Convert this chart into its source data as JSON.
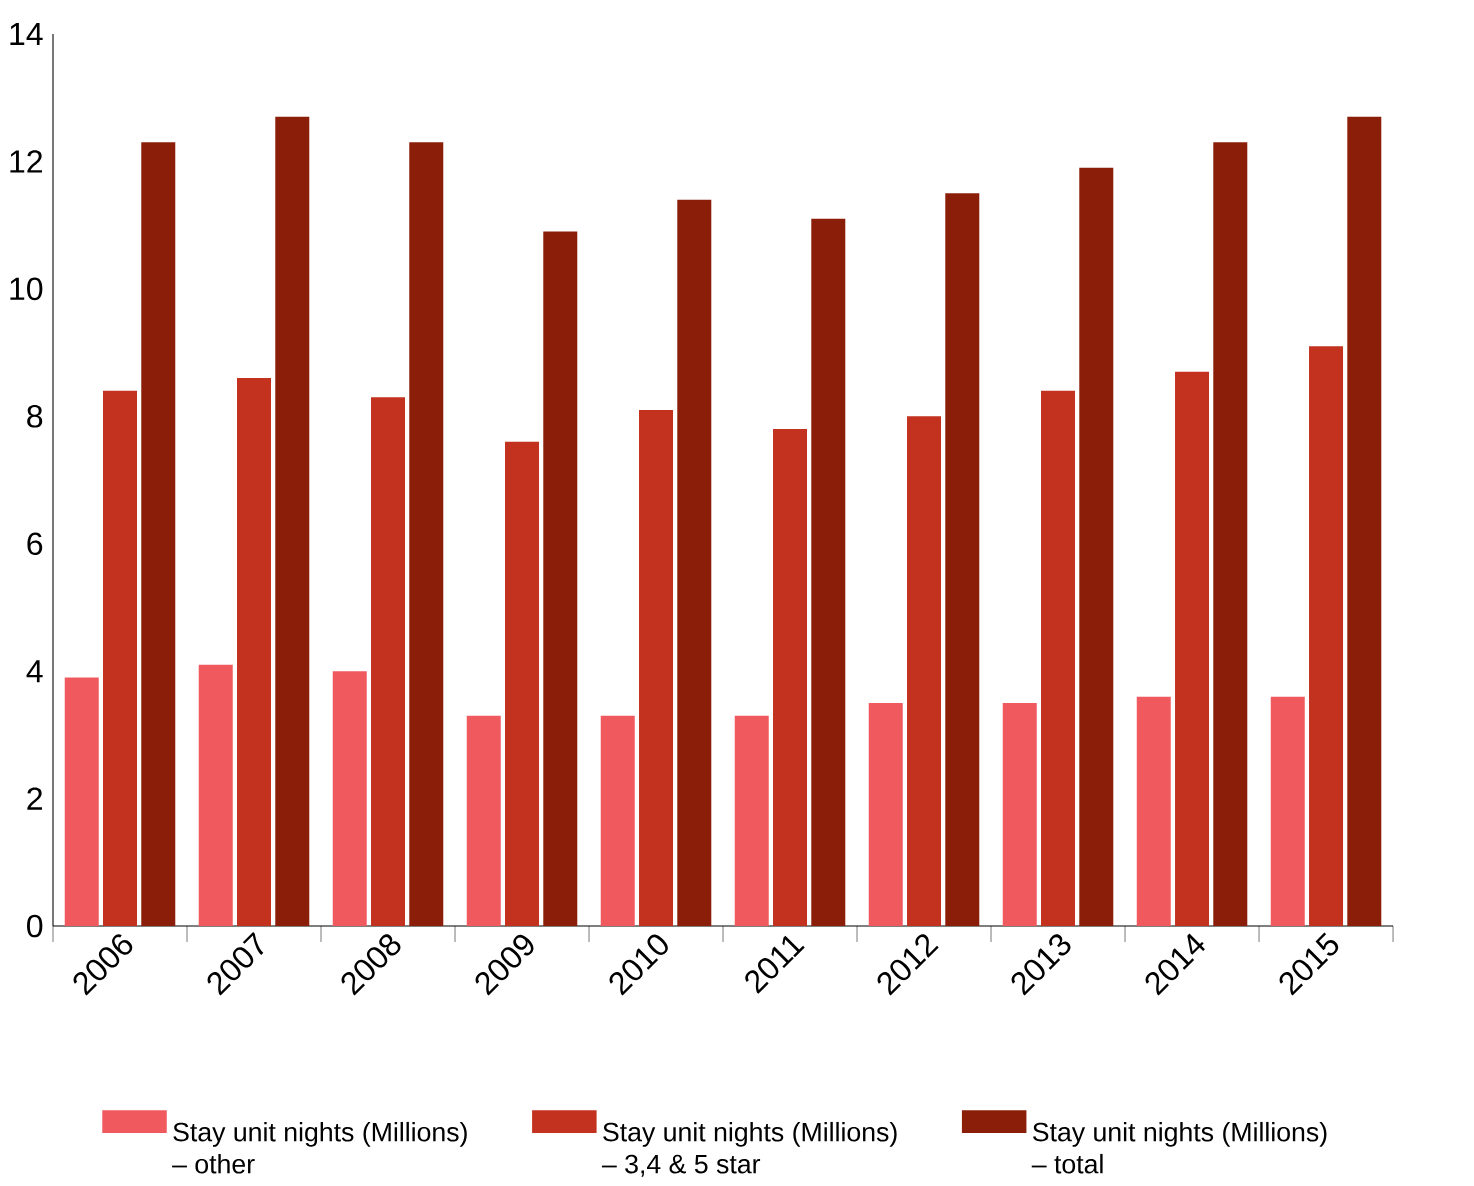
{
  "chart_data": {
    "type": "bar",
    "categories": [
      "2006",
      "2007",
      "2008",
      "2009",
      "2010",
      "2011",
      "2012",
      "2013",
      "2014",
      "2015"
    ],
    "series": [
      {
        "name": "Stay unit nights (Millions) – other",
        "color": "#f05a5f",
        "values": [
          3.9,
          4.1,
          4.0,
          3.3,
          3.3,
          3.3,
          3.5,
          3.5,
          3.6,
          3.6
        ]
      },
      {
        "name": "Stay unit nights (Millions) – 3,4 & 5 star",
        "color": "#c3311f",
        "values": [
          8.4,
          8.6,
          8.3,
          7.6,
          8.1,
          7.8,
          8.0,
          8.4,
          8.7,
          9.1
        ]
      },
      {
        "name": "Stay unit nights (Millions) – total",
        "color": "#8b1e08",
        "values": [
          12.3,
          12.7,
          12.3,
          10.9,
          11.4,
          11.1,
          11.5,
          11.9,
          12.3,
          12.7
        ]
      }
    ],
    "ylim": [
      0,
      14
    ],
    "yticks": [
      0,
      2,
      4,
      6,
      8,
      10,
      12,
      14
    ],
    "grid": false,
    "legend": "bottom"
  }
}
